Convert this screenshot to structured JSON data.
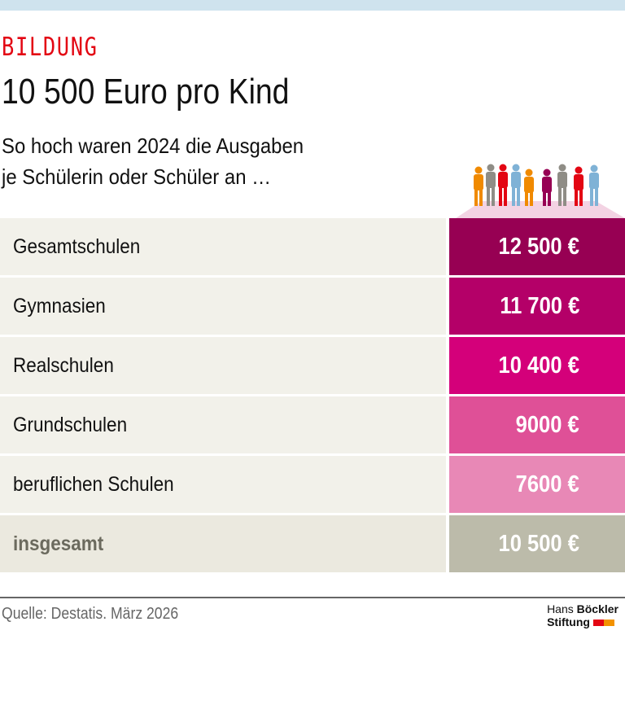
{
  "header": {
    "kicker": "BILDUNG",
    "title": "10 500 Euro pro Kind",
    "subtitle_line1": "So hoch waren 2024 die Ausgaben",
    "subtitle_line2": "je Schülerin oder Schüler an …"
  },
  "chart_data": {
    "type": "table",
    "unit": "€",
    "rows": [
      {
        "label": "Gesamtschulen",
        "value": 12500,
        "display": "12 500 €",
        "color": "#970053"
      },
      {
        "label": "Gymnasien",
        "value": 11700,
        "display": "11 700 €",
        "color": "#b40068"
      },
      {
        "label": "Realschulen",
        "value": 10400,
        "display": "10 400 €",
        "color": "#d4007a"
      },
      {
        "label": "Grundschulen",
        "value": 9000,
        "display": "9000 €",
        "color": "#df5097"
      },
      {
        "label": "beruflichen Schulen",
        "value": 7600,
        "display": "7600 €",
        "color": "#e888b6"
      },
      {
        "label": "insgesamt",
        "value": 10500,
        "display": "10 500 €",
        "color": "#bcbbaa"
      }
    ]
  },
  "footer": {
    "source": "Quelle: Destatis. März 2026",
    "logo_line1a": "Hans ",
    "logo_line1b": "Böckler",
    "logo_line2": "Stiftung"
  }
}
